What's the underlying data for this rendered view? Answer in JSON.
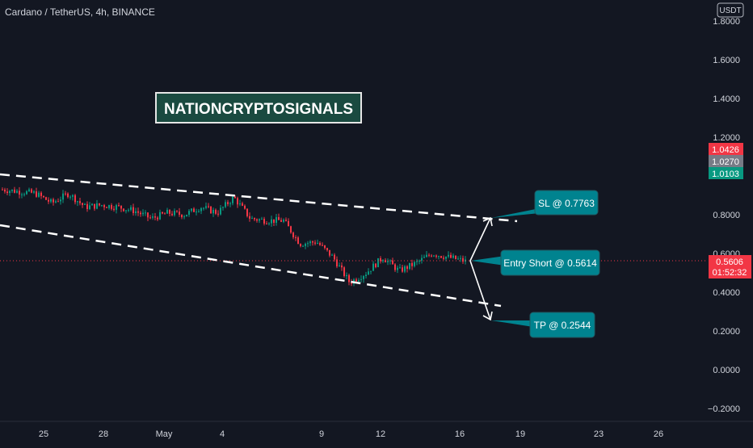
{
  "symbol_header": "Cardano / TetherUS, 4h, BINANCE",
  "currency_button": "USDT",
  "watermark": "NATIONCRYPTOSIGNALS",
  "price_axis": {
    "ticks": [
      "1.8000",
      "1.6000",
      "1.4000",
      "1.2000",
      "0.8000",
      "0.6000",
      "0.4000",
      "0.2000",
      "0.0000",
      "−0.2000"
    ],
    "tick_values": [
      1.8,
      1.6,
      1.4,
      1.2,
      0.8,
      0.6,
      0.4,
      0.2,
      0.0,
      -0.2
    ]
  },
  "price_labels": {
    "high": {
      "text": "1.0426",
      "color": "#f23645"
    },
    "mid": {
      "text": "1.0270",
      "color": "#787b86"
    },
    "low": {
      "text": "1.0103",
      "color": "#089981"
    },
    "last": {
      "text": "0.5606",
      "color": "#f23645"
    },
    "countdown": "01:52:32"
  },
  "time_axis": {
    "ticks": [
      "25",
      "28",
      "May",
      "4",
      "9",
      "12",
      "16",
      "19",
      "23",
      "26"
    ]
  },
  "annotations": {
    "sl": "SL @ 0.7763",
    "entry": "Entry Short @ 0.5614",
    "tp": "TP @ 0.2544",
    "box_color": "#00838f"
  },
  "chart_data": {
    "type": "candlestick",
    "title": "Cardano / TetherUS, 4h, BINANCE",
    "ylim": [
      -0.2,
      1.8
    ],
    "up_color": "#089981",
    "down_color": "#f23645",
    "close_path": [
      0.93,
      0.92,
      0.91,
      0.86,
      0.91,
      0.84,
      0.85,
      0.84,
      0.82,
      0.78,
      0.81,
      0.8,
      0.84,
      0.81,
      0.89,
      0.78,
      0.77,
      0.77,
      0.65,
      0.66,
      0.58,
      0.45,
      0.5,
      0.58,
      0.51,
      0.55,
      0.6,
      0.58,
      0.56
    ],
    "levels": {
      "stop_loss": 0.7763,
      "entry": 0.5614,
      "take_profit": 0.2544,
      "last": 0.5606
    }
  }
}
